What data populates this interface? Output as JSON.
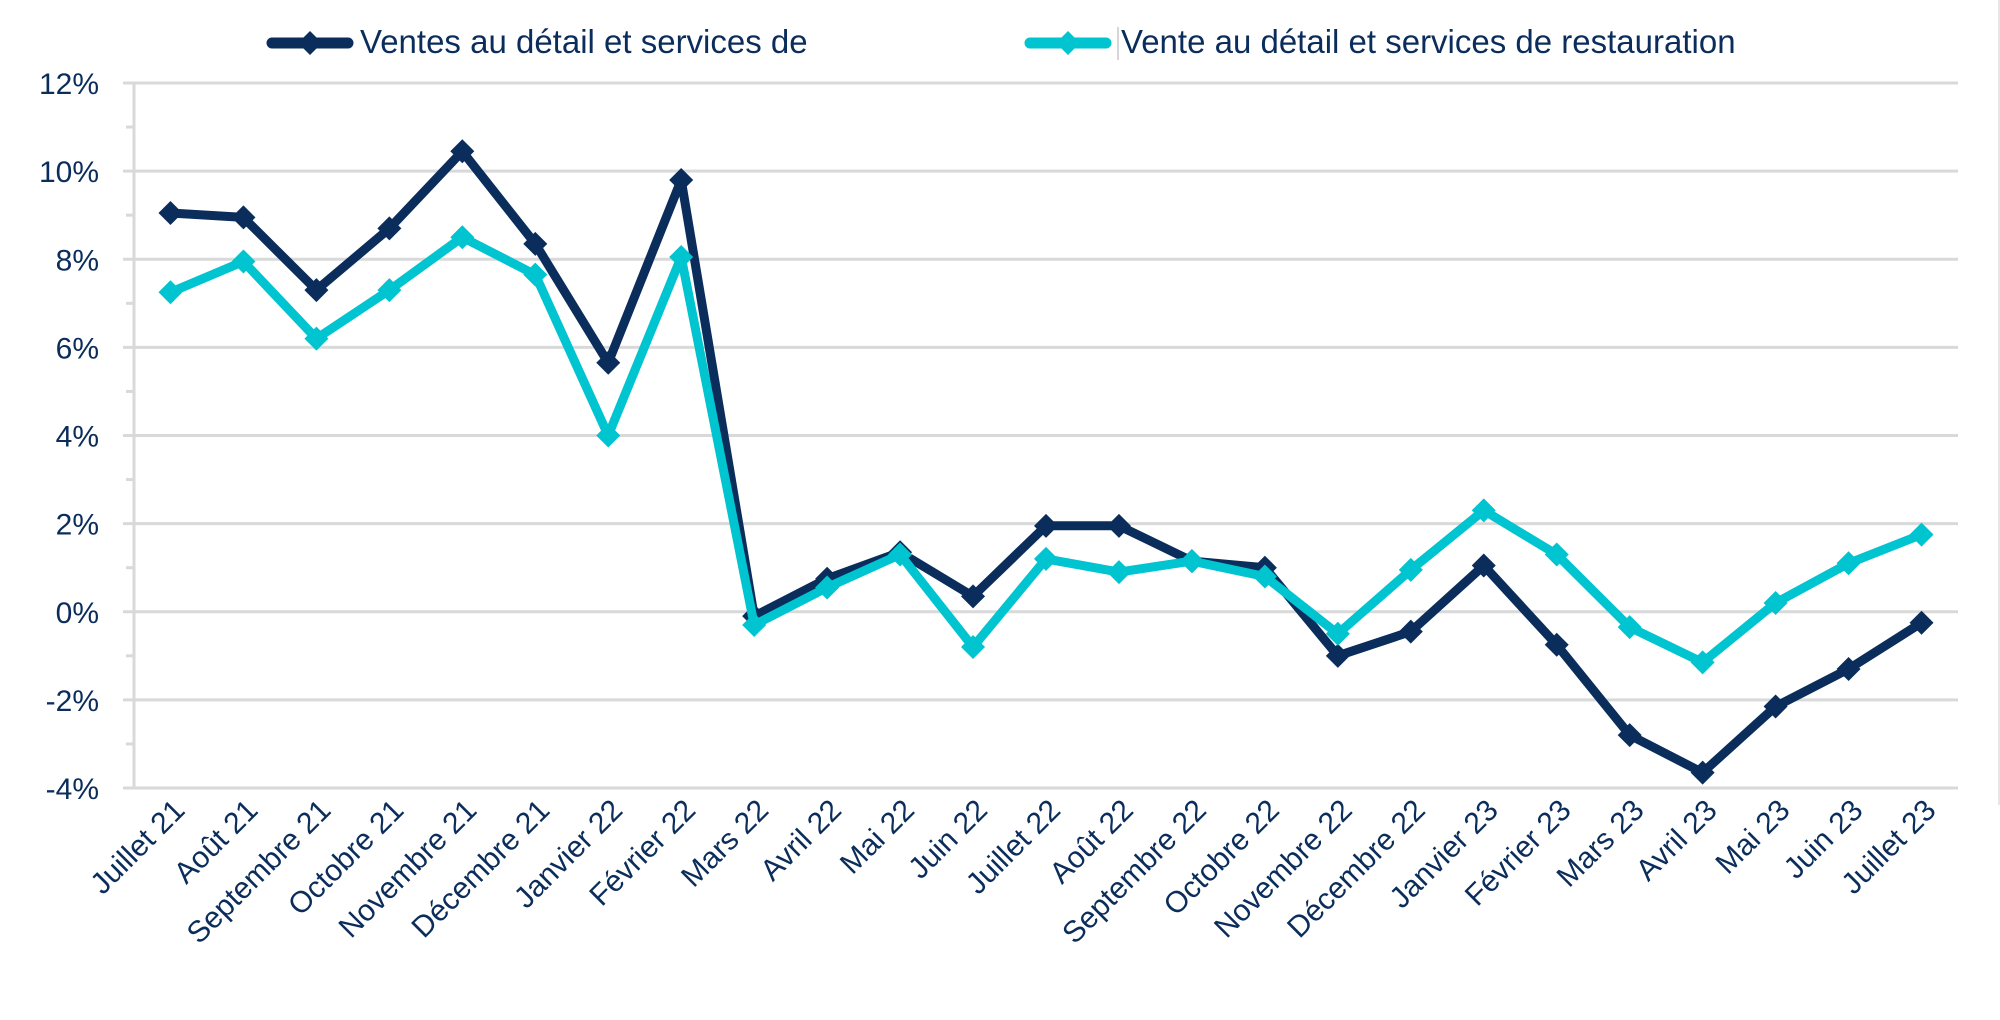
{
  "chart_data": {
    "type": "line",
    "title": "",
    "xlabel": "",
    "ylabel": "",
    "ylim": [
      -4,
      12
    ],
    "y_ticks": [
      -4,
      -2,
      0,
      2,
      4,
      6,
      8,
      10,
      12
    ],
    "y_tick_labels": [
      "-4%",
      "-2%",
      "0%",
      "2%",
      "4%",
      "6%",
      "8%",
      "10%",
      "12%"
    ],
    "y_minor_step": 1,
    "grid": true,
    "legend_position": "top",
    "categories": [
      "Juillet 21",
      "Août 21",
      "Septembre 21",
      "Octobre 21",
      "Novembre 21",
      "Décembre 21",
      "Janvier 22",
      "Février 22",
      "Mars 22",
      "Avril 22",
      "Mai 22",
      "Juin 22",
      "Juillet 22",
      "Août 22",
      "Septembre 22",
      "Octobre 22",
      "Novembre 22",
      "Décembre 22",
      "Janvier 23",
      "Février 23",
      "Mars 23",
      "Avril 23",
      "Mai 23",
      "Juin 23",
      "Juillet 23"
    ],
    "series": [
      {
        "name": "Ventes au détail et services de",
        "color": "#0b2d5b",
        "marker": "diamond",
        "values": [
          9.05,
          8.95,
          7.3,
          8.7,
          10.45,
          8.35,
          5.65,
          9.8,
          -0.1,
          0.75,
          1.35,
          0.35,
          1.95,
          1.95,
          1.15,
          1.0,
          -1.0,
          -0.45,
          1.05,
          -0.75,
          -2.8,
          -3.65,
          -2.15,
          -1.3,
          -0.25
        ]
      },
      {
        "name": "Vente au détail et services de restauration",
        "color": "#00c4cf",
        "marker": "diamond",
        "values": [
          7.25,
          7.95,
          6.2,
          7.3,
          8.5,
          7.65,
          4.0,
          8.05,
          -0.3,
          0.55,
          1.3,
          -0.8,
          1.2,
          0.9,
          1.15,
          0.8,
          -0.5,
          0.95,
          2.3,
          1.3,
          -0.35,
          -1.15,
          0.2,
          1.1,
          1.75
        ]
      }
    ]
  }
}
